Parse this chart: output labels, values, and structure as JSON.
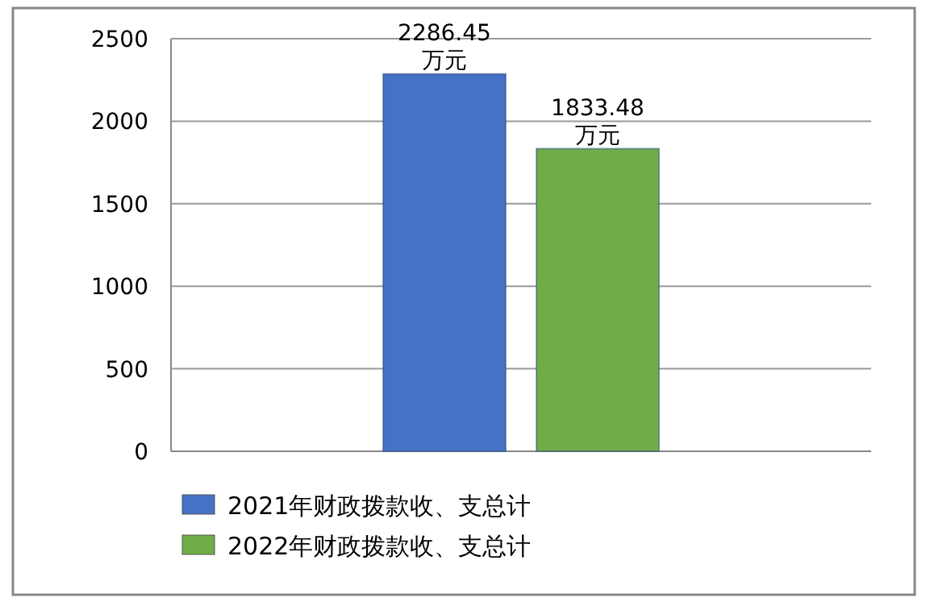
{
  "chart_data": {
    "type": "bar",
    "categories": [
      null
    ],
    "series": [
      {
        "name": "2021年财政拨款收、支总计",
        "color": "#4472c4",
        "values": [
          2286.45
        ],
        "value_labels": [
          "2286.45\n万元"
        ]
      },
      {
        "name": "2022年财政拨款收、支总计",
        "color": "#70ad47",
        "values": [
          1833.48
        ],
        "value_labels": [
          "1833.48\n万元"
        ]
      }
    ],
    "ylim": [
      0,
      2500
    ],
    "yticks": [
      0,
      500,
      1000,
      1500,
      2000,
      2500
    ],
    "grid": "y",
    "legend": "bottom"
  }
}
